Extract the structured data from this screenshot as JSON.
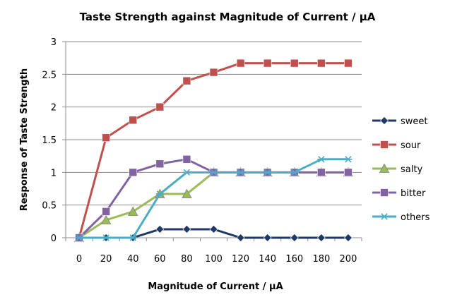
{
  "chart_data": {
    "type": "line",
    "title": "Taste Strength against Magnitude of Current / µA",
    "xlabel": "Magnitude of Current / µA",
    "ylabel": "Response of Taste Strength",
    "categories": [
      "0",
      "20",
      "40",
      "60",
      "80",
      "100",
      "120",
      "140",
      "160",
      "180",
      "200"
    ],
    "yticks": [
      "0",
      "0.5",
      "1",
      "1.5",
      "2",
      "2.5",
      "3"
    ],
    "ylim": [
      0,
      3
    ],
    "grid": true,
    "legend_position": "right",
    "series": [
      {
        "name": "sweet",
        "color": "#1F3864",
        "marker": "diamond",
        "values": [
          0,
          0,
          0,
          0.13,
          0.13,
          0.13,
          0,
          0,
          0,
          0,
          0
        ]
      },
      {
        "name": "sour",
        "color": "#C0504D",
        "marker": "square",
        "values": [
          0,
          1.53,
          1.8,
          2.0,
          2.4,
          2.53,
          2.67,
          2.67,
          2.67,
          2.67,
          2.67
        ]
      },
      {
        "name": "salty",
        "color": "#9BBB59",
        "marker": "triangle",
        "values": [
          0,
          0.27,
          0.4,
          0.67,
          0.67,
          1.0,
          1.0,
          1.0,
          1.0,
          1.0,
          1.0
        ]
      },
      {
        "name": "bitter",
        "color": "#8064A2",
        "marker": "square",
        "values": [
          0,
          0.4,
          1.0,
          1.13,
          1.2,
          1.0,
          1.0,
          1.0,
          1.0,
          1.0,
          1.0
        ]
      },
      {
        "name": "others",
        "color": "#4BACC6",
        "marker": "star",
        "values": [
          0,
          0,
          0,
          0.67,
          1.0,
          1.0,
          1.0,
          1.0,
          1.0,
          1.2,
          1.2
        ]
      }
    ]
  }
}
